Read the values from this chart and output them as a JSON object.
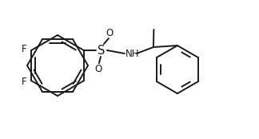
{
  "bg_color": "#ffffff",
  "line_color": "#1a1a1a",
  "line_width": 1.4,
  "font_size": 8.5,
  "fig_width": 3.24,
  "fig_height": 1.74,
  "dpi": 100,
  "xlim": [
    0.0,
    3.24
  ],
  "ylim": [
    0.0,
    1.74
  ]
}
